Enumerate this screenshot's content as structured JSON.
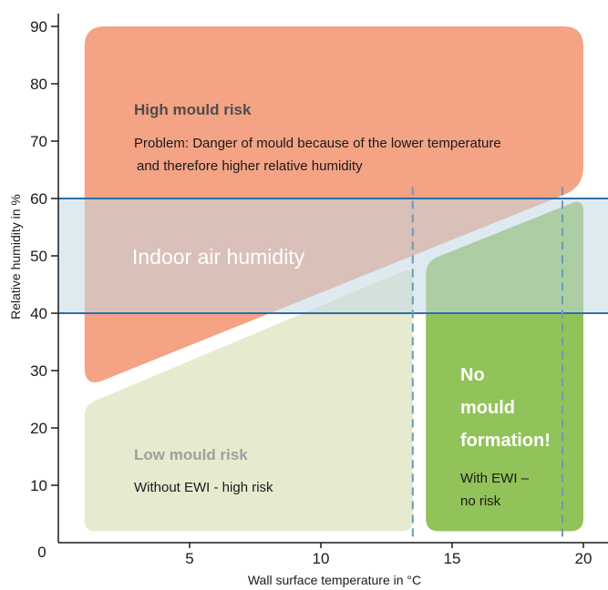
{
  "chart_data": {
    "type": "area",
    "xlabel": "Wall surface temperature in °C",
    "ylabel": "Relative humidity in %",
    "xlim": [
      0,
      20
    ],
    "ylim": [
      0,
      90
    ],
    "x_ticks": [
      5,
      10,
      15,
      20
    ],
    "y_ticks": [
      10,
      20,
      30,
      40,
      50,
      60,
      70,
      80,
      90
    ],
    "origin_label": "0",
    "indoor_air_humidity_band": [
      40,
      60
    ],
    "indoor_air_humidity_label": "Indoor air humidity",
    "reference_temperatures": [
      13.5,
      19.2
    ],
    "regions": {
      "high_risk": {
        "title": "High mould risk",
        "text_line1": "Problem: Danger of mould because of the lower temperature",
        "text_line2": "and therefore higher relative humidity",
        "color": "#f4a385",
        "boundary": [
          [
            1.0,
            27
          ],
          [
            20.0,
            62
          ],
          [
            20.0,
            90
          ],
          [
            1.0,
            90
          ]
        ]
      },
      "low_risk": {
        "title": "Low mould risk",
        "text": "Without EWI - high risk",
        "color": "#e6ebcf",
        "boundary": [
          [
            1.0,
            24
          ],
          [
            13.5,
            48
          ],
          [
            13.5,
            2
          ],
          [
            1.0,
            2
          ]
        ]
      },
      "no_mould": {
        "title_line1": "No",
        "title_line2": "mould",
        "title_line3": "formation!",
        "text_line1": "With EWI –",
        "text_line2": "no risk",
        "color": "#92c25a",
        "boundary": [
          [
            14.0,
            49
          ],
          [
            20.0,
            60
          ],
          [
            20.0,
            2
          ],
          [
            14.0,
            2
          ]
        ]
      }
    },
    "colors": {
      "band_line": "#2e6ea7",
      "band_fill": "#c3d8e3",
      "dashed_line": "#6a9bb8",
      "title_high": "#4d4d4d",
      "title_low": "#9e9e9e"
    }
  }
}
